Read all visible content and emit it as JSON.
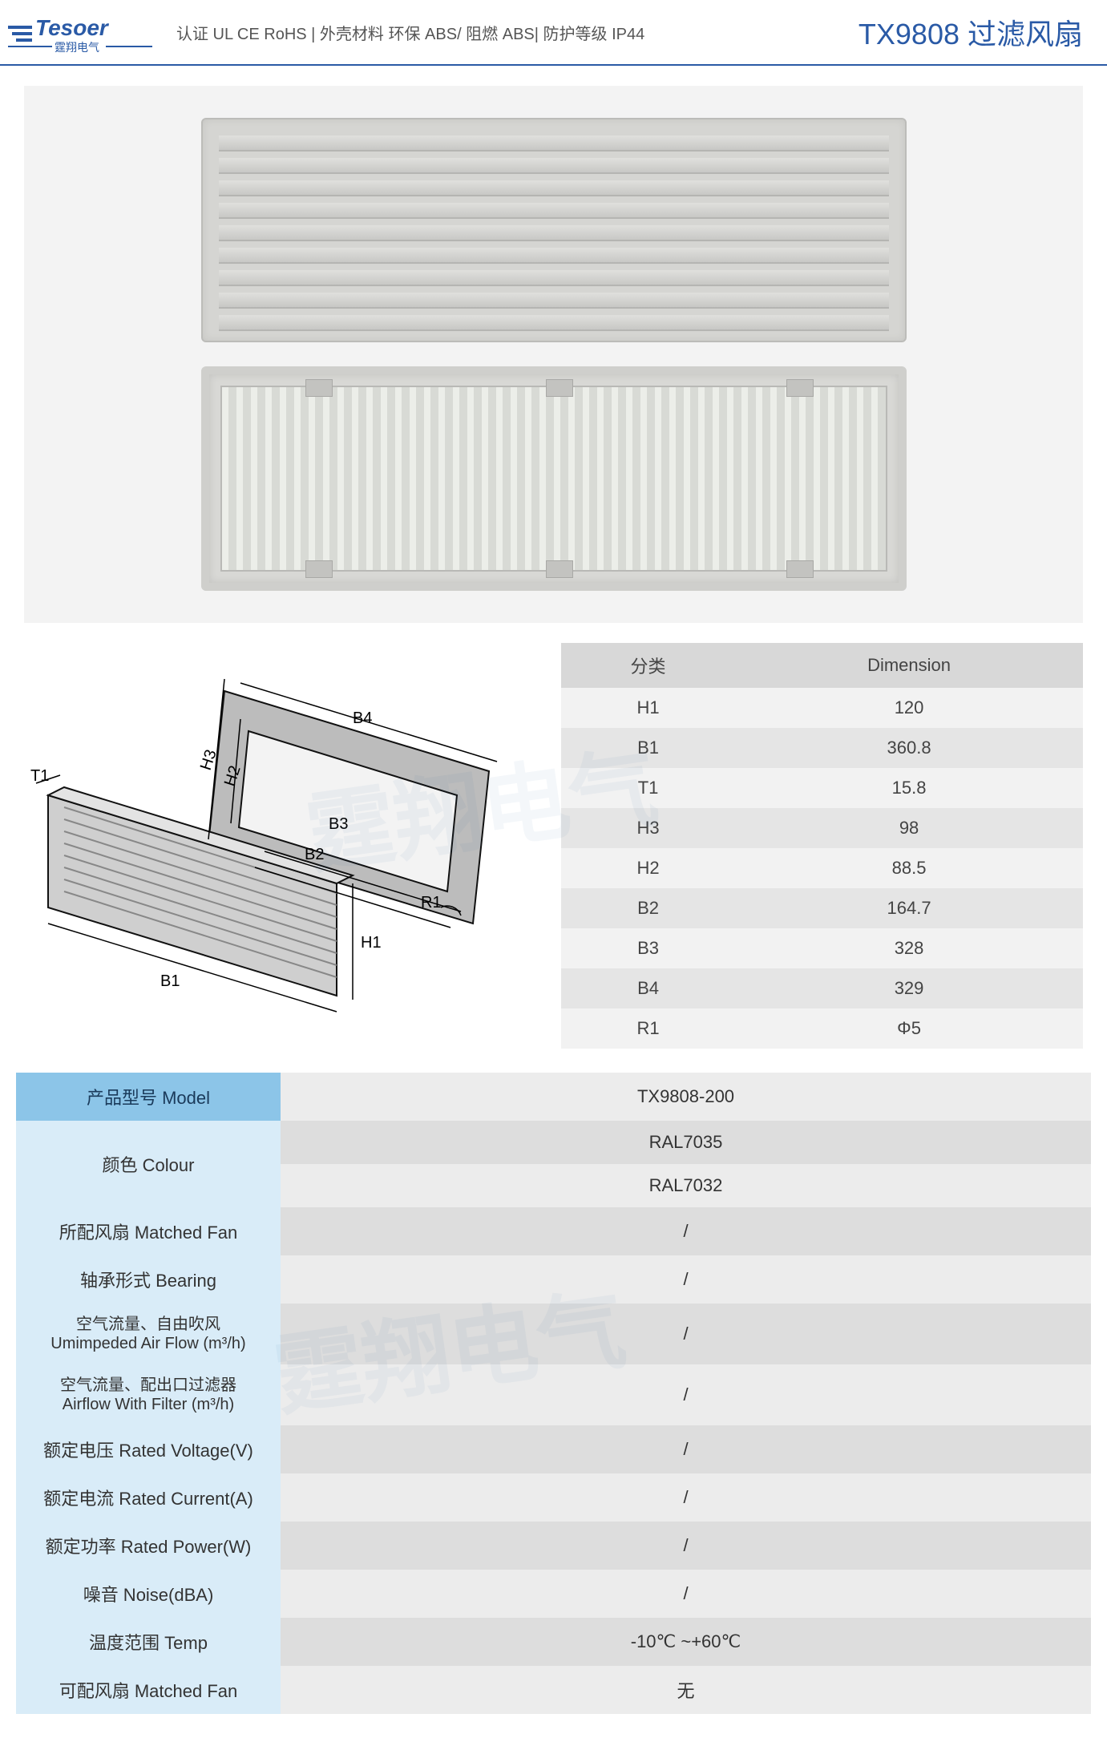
{
  "header": {
    "brand_en": "Tesoer",
    "brand_cn": "霆翔电气",
    "cert": "认证 UL CE RoHS | 外壳材料 环保 ABS/ 阻燃 ABS| 防护等级 IP44",
    "title": "TX9808 过滤风扇"
  },
  "dimension_table": {
    "header": [
      "分类",
      "Dimension"
    ],
    "rows": [
      [
        "H1",
        "120"
      ],
      [
        "B1",
        "360.8"
      ],
      [
        "T1",
        "15.8"
      ],
      [
        "H3",
        "98"
      ],
      [
        "H2",
        "88.5"
      ],
      [
        "B2",
        "164.7"
      ],
      [
        "B3",
        "328"
      ],
      [
        "B4",
        "329"
      ],
      [
        "R1",
        "Φ5"
      ]
    ]
  },
  "diagram_labels": [
    "T1",
    "B1",
    "H1",
    "H2",
    "H3",
    "B2",
    "B3",
    "B4",
    "R1"
  ],
  "spec_table": {
    "rows": [
      {
        "label": "产品型号 Model",
        "value": "TX9808-200",
        "lcls": "hblue",
        "vcls": "grey-a",
        "rowspan": 1
      },
      {
        "label": "颜色 Colour",
        "value": "RAL7035",
        "lcls": "lblue",
        "vcls": "grey-b",
        "rowspan": 2
      },
      {
        "label": "",
        "value": "RAL7032",
        "lcls": "",
        "vcls": "grey-a"
      },
      {
        "label": "所配风扇 Matched Fan",
        "value": "/",
        "lcls": "lblue",
        "vcls": "grey-b"
      },
      {
        "label": "轴承形式 Bearing",
        "value": "/",
        "lcls": "lblue",
        "vcls": "grey-a"
      },
      {
        "label": "空气流量、自由吹风",
        "sub": "Umimpeded Air Flow (m³/h)",
        "value": "/",
        "lcls": "lblue",
        "vcls": "grey-b"
      },
      {
        "label": "空气流量、配出口过滤器",
        "sub": "Airflow With Filter (m³/h)",
        "value": "/",
        "lcls": "lblue",
        "vcls": "grey-a"
      },
      {
        "label": "额定电压 Rated Voltage(V)",
        "value": "/",
        "lcls": "lblue",
        "vcls": "grey-b"
      },
      {
        "label": "额定电流 Rated Current(A)",
        "value": "/",
        "lcls": "lblue",
        "vcls": "grey-a"
      },
      {
        "label": "额定功率 Rated Power(W)",
        "value": "/",
        "lcls": "lblue",
        "vcls": "grey-b"
      },
      {
        "label": "噪音 Noise(dBA)",
        "value": "/",
        "lcls": "lblue",
        "vcls": "grey-a"
      },
      {
        "label": "温度范围 Temp",
        "value": "-10℃ ~+60℃",
        "lcls": "lblue",
        "vcls": "grey-b"
      },
      {
        "label": "可配风扇 Matched Fan",
        "value": "无",
        "lcls": "lblue",
        "vcls": "grey-a"
      }
    ]
  },
  "colors": {
    "brand_blue": "#2a5aa6",
    "header_blue": "#8cc5e8",
    "light_blue": "#d9ecf8",
    "grey_a": "#ececec",
    "grey_b": "#dddddd",
    "dim_head": "#d8d8d8"
  }
}
